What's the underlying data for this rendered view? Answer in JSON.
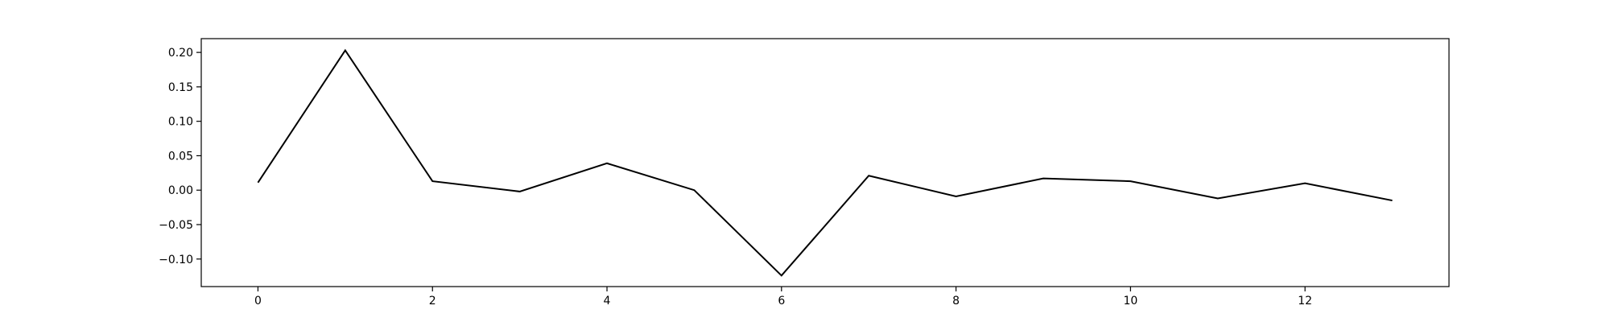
{
  "chart_data": {
    "type": "line",
    "title": "",
    "xlabel": "",
    "ylabel": "",
    "xlim": [
      -0.65,
      13.65
    ],
    "ylim": [
      -0.14,
      0.22
    ],
    "grid": false,
    "x_ticks": [
      0,
      2,
      4,
      6,
      8,
      10,
      12
    ],
    "x_tick_labels": [
      "0",
      "2",
      "4",
      "6",
      "8",
      "10",
      "12"
    ],
    "y_ticks": [
      -0.1,
      -0.05,
      0.0,
      0.05,
      0.1,
      0.15,
      0.2
    ],
    "y_tick_labels": [
      "−0.10",
      "−0.05",
      "0.00",
      "0.05",
      "0.10",
      "0.15",
      "0.20"
    ],
    "series": [
      {
        "color": "#000000",
        "x": [
          0,
          1,
          2,
          3,
          4,
          5,
          6,
          7,
          8,
          9,
          10,
          11,
          12,
          13
        ],
        "y": [
          0.011,
          0.203,
          0.013,
          -0.002,
          0.039,
          0.0,
          -0.124,
          0.021,
          -0.009,
          0.017,
          0.013,
          -0.012,
          0.01,
          -0.015
        ]
      }
    ]
  }
}
